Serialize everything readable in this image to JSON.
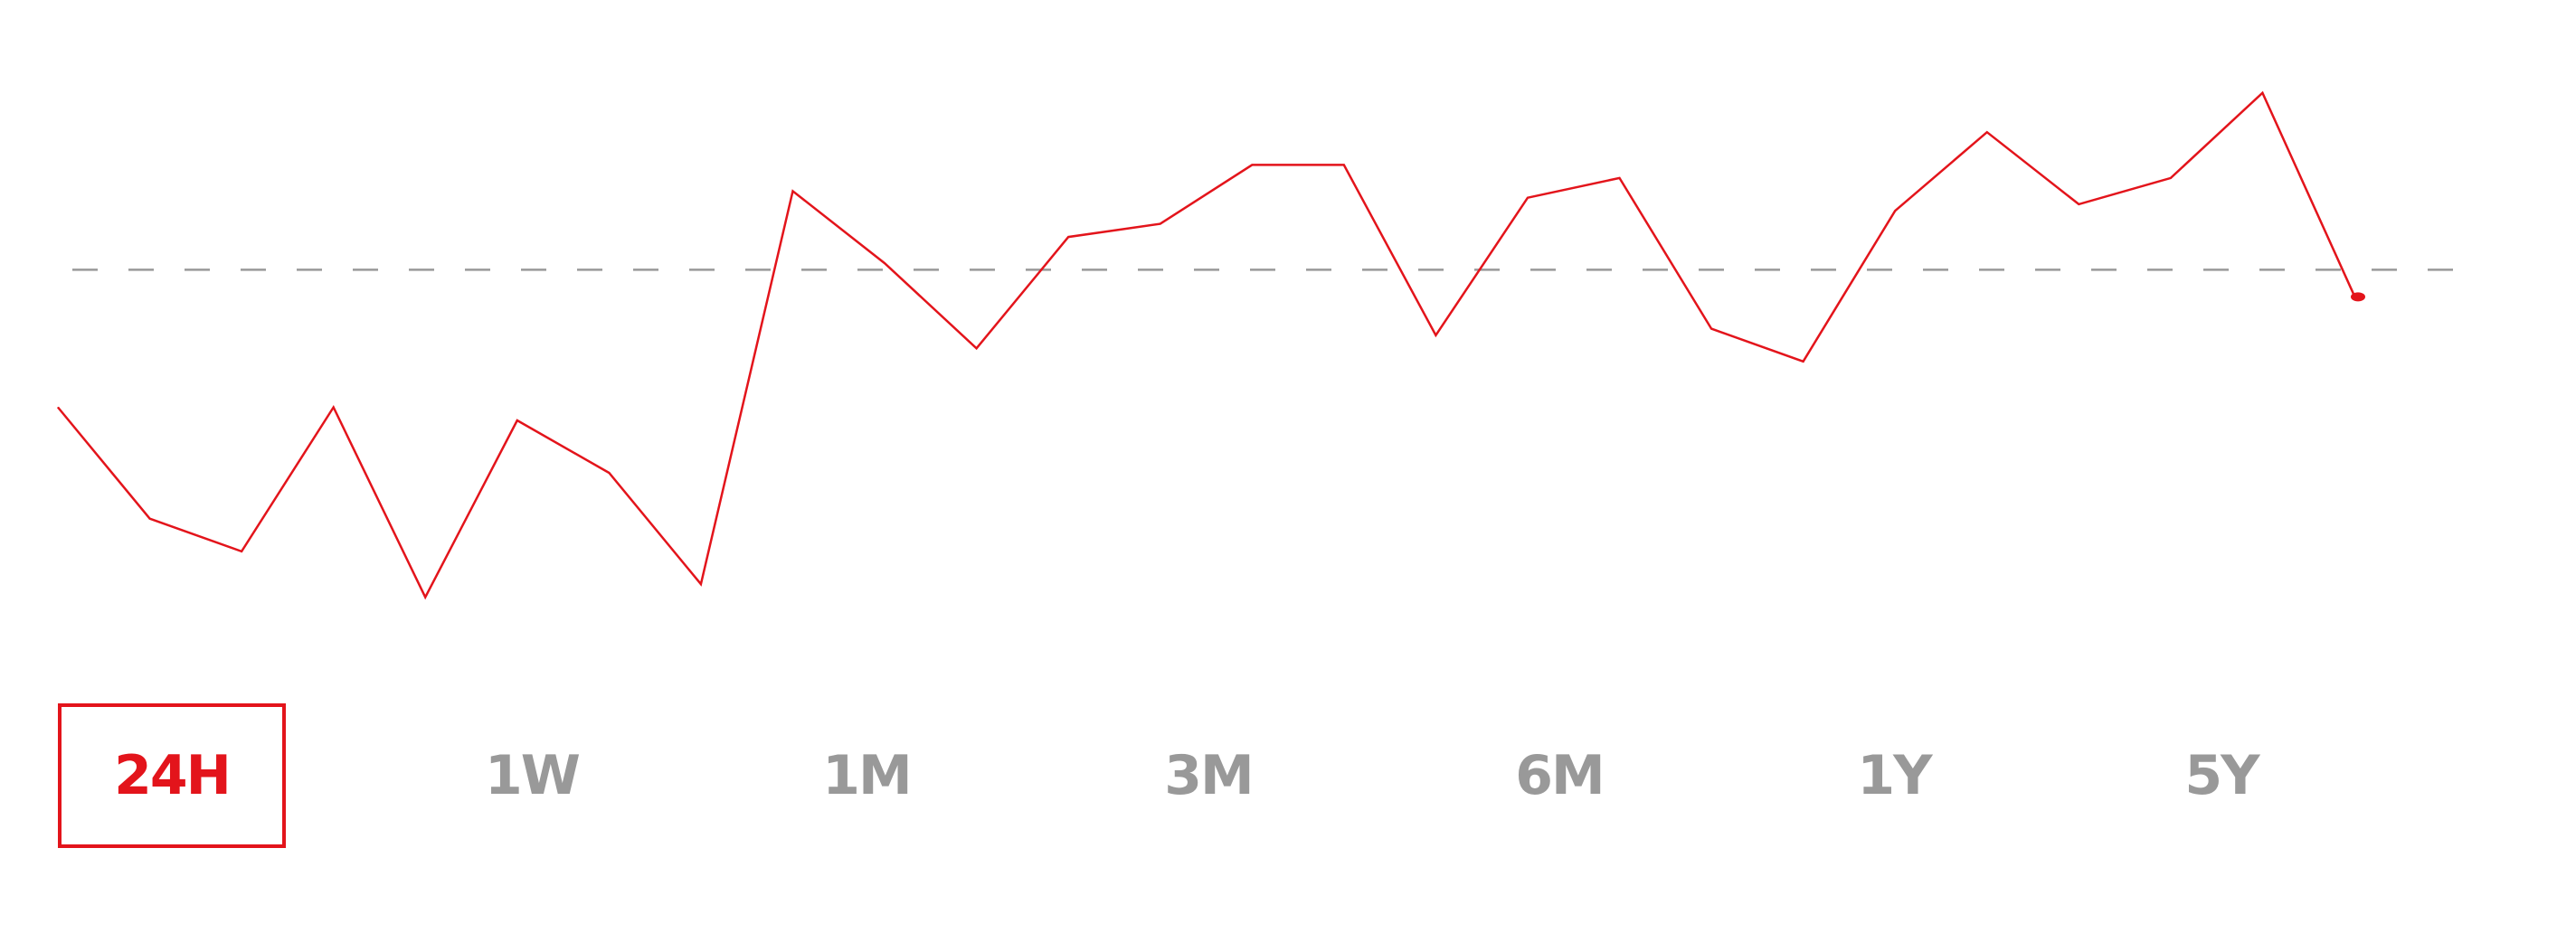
{
  "colors": {
    "line": "#e3141b",
    "reference_line": "#999999",
    "active_tab": "#e3141b",
    "inactive_tab": "#999999",
    "background": "#ffffff"
  },
  "chart_data": {
    "type": "line",
    "title": "",
    "xlabel": "",
    "ylabel": "",
    "grid": false,
    "legend": "none",
    "ylim": [
      0,
      100
    ],
    "x": [
      0,
      1,
      2,
      3,
      4,
      5,
      6,
      7,
      8,
      9,
      10,
      11,
      12,
      13,
      14,
      15,
      16,
      17,
      18,
      19,
      20,
      21,
      22,
      23,
      24,
      25
    ],
    "series": [
      {
        "values": [
          51,
          34,
          29,
          51,
          22,
          49,
          41,
          24,
          84,
          73,
          60,
          77,
          79,
          88,
          88,
          62,
          83,
          86,
          63,
          58,
          81,
          93,
          82,
          86,
          99,
          68
        ]
      }
    ],
    "reference_line": {
      "style": "dashed",
      "value": 72
    },
    "end_marker": true
  },
  "range_selector": {
    "active": "24H",
    "tabs": [
      {
        "label": "24H"
      },
      {
        "label": "1W"
      },
      {
        "label": "1M"
      },
      {
        "label": "3M"
      },
      {
        "label": "6M"
      },
      {
        "label": "1Y"
      },
      {
        "label": "5Y"
      }
    ]
  }
}
